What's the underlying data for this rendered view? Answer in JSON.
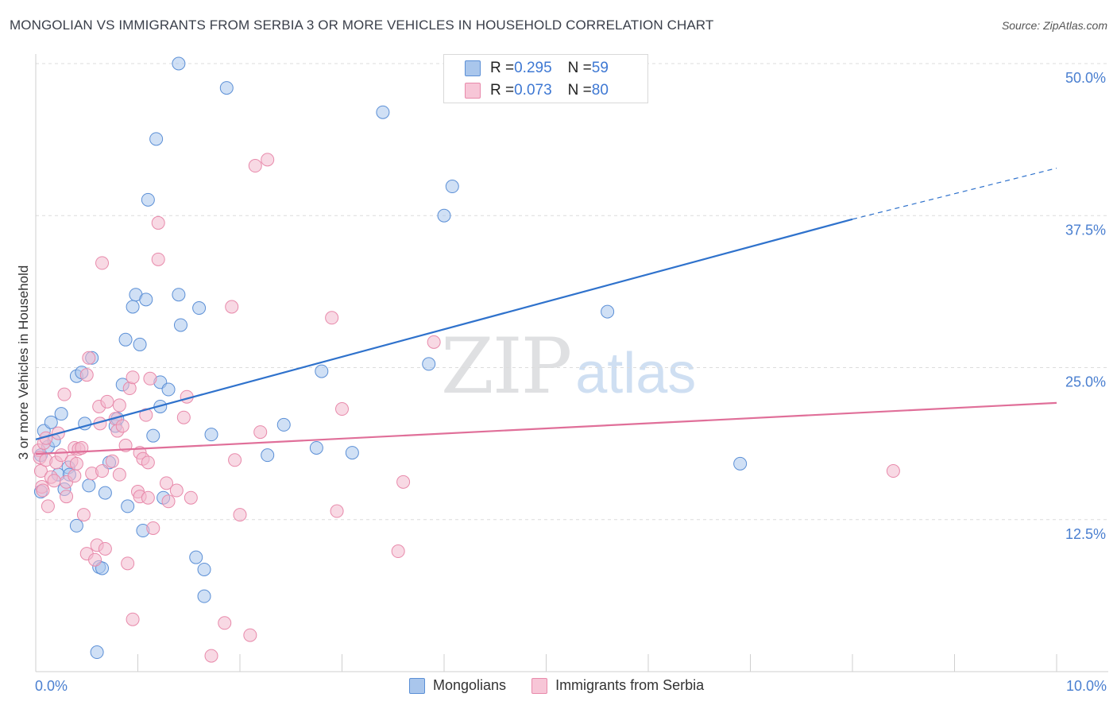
{
  "header": {
    "title": "MONGOLIAN VS IMMIGRANTS FROM SERBIA 3 OR MORE VEHICLES IN HOUSEHOLD CORRELATION CHART",
    "source": "Source: ZipAtlas.com"
  },
  "watermark": {
    "zip": "ZIP",
    "atlas": "atlas"
  },
  "legend_top": {
    "rows": [
      {
        "r_label": "R = ",
        "r_value": "0.295",
        "n_label": "N = ",
        "n_value": "59"
      },
      {
        "r_label": "R = ",
        "r_value": "0.073",
        "n_label": "N = ",
        "n_value": "80"
      }
    ]
  },
  "legend_bottom": {
    "series1": "Mongolians",
    "series2": "Immigrants from Serbia"
  },
  "colors": {
    "blue_fill": "#a9c6ec",
    "blue_stroke": "#5b8fd6",
    "blue_line": "#2f72cc",
    "pink_fill": "#f3b9cd",
    "pink_stroke": "#e88aab",
    "pink_line": "#e06f99",
    "axis_text": "#4a7fd0",
    "grid": "#dcdcdc"
  },
  "chart_data": {
    "type": "scatter",
    "title": "MONGOLIAN VS IMMIGRANTS FROM SERBIA 3 OR MORE VEHICLES IN HOUSEHOLD CORRELATION CHART",
    "xlabel": "",
    "ylabel": "3 or more Vehicles in Household",
    "xlim": [
      0,
      10
    ],
    "ylim": [
      0,
      50
    ],
    "x_tick_labels": [
      "0.0%",
      "10.0%"
    ],
    "y_tick_labels": [
      "12.5%",
      "25.0%",
      "37.5%",
      "50.0%"
    ],
    "y_ticks": [
      12.5,
      25,
      37.5,
      50
    ],
    "series": [
      {
        "name": "Mongolians",
        "R": 0.295,
        "N": 59,
        "points": [
          [
            0.05,
            17.8
          ],
          [
            0.05,
            14.8
          ],
          [
            0.08,
            19.8
          ],
          [
            0.12,
            18.5
          ],
          [
            0.15,
            20.5
          ],
          [
            0.18,
            19
          ],
          [
            0.22,
            16.2
          ],
          [
            0.25,
            21.2
          ],
          [
            0.28,
            15
          ],
          [
            0.32,
            16.8
          ],
          [
            0.33,
            16.2
          ],
          [
            0.4,
            12
          ],
          [
            0.4,
            24.3
          ],
          [
            0.45,
            24.6
          ],
          [
            0.48,
            20.4
          ],
          [
            0.52,
            15.3
          ],
          [
            0.55,
            25.8
          ],
          [
            0.62,
            8.6
          ],
          [
            0.65,
            8.5
          ],
          [
            0.68,
            14.7
          ],
          [
            0.72,
            17.2
          ],
          [
            0.78,
            20.2
          ],
          [
            0.8,
            20.8
          ],
          [
            0.85,
            23.6
          ],
          [
            0.88,
            27.3
          ],
          [
            0.9,
            13.6
          ],
          [
            0.95,
            30
          ],
          [
            0.98,
            31
          ],
          [
            1.02,
            26.9
          ],
          [
            1.05,
            11.6
          ],
          [
            1.08,
            30.6
          ],
          [
            1.1,
            38.8
          ],
          [
            1.15,
            19.4
          ],
          [
            1.18,
            43.8
          ],
          [
            1.22,
            21.8
          ],
          [
            1.22,
            23.8
          ],
          [
            1.25,
            14.3
          ],
          [
            1.3,
            23.2
          ],
          [
            1.4,
            31
          ],
          [
            1.42,
            28.5
          ],
          [
            1.4,
            50
          ],
          [
            1.57,
            9.4
          ],
          [
            1.6,
            29.9
          ],
          [
            1.65,
            8.4
          ],
          [
            1.65,
            6.2
          ],
          [
            1.72,
            19.5
          ],
          [
            1.87,
            48
          ],
          [
            2.27,
            17.8
          ],
          [
            2.43,
            20.3
          ],
          [
            2.75,
            18.4
          ],
          [
            2.8,
            24.7
          ],
          [
            3.1,
            18
          ],
          [
            3.4,
            46
          ],
          [
            3.85,
            25.3
          ],
          [
            4,
            37.5
          ],
          [
            4.08,
            39.9
          ],
          [
            5.6,
            29.6
          ],
          [
            6.9,
            17.1
          ],
          [
            0.6,
            1.6
          ]
        ]
      },
      {
        "name": "Immigrants from Serbia",
        "R": 0.073,
        "N": 80,
        "points": [
          [
            0.03,
            18.2
          ],
          [
            0.04,
            17.6
          ],
          [
            0.05,
            16.5
          ],
          [
            0.06,
            15.2
          ],
          [
            0.07,
            14.9
          ],
          [
            0.08,
            18.8
          ],
          [
            0.1,
            17.4
          ],
          [
            0.12,
            13.6
          ],
          [
            0.15,
            16
          ],
          [
            0.18,
            15.7
          ],
          [
            0.2,
            17.2
          ],
          [
            0.22,
            19.6
          ],
          [
            0.25,
            17.8
          ],
          [
            0.28,
            22.8
          ],
          [
            0.3,
            14.4
          ],
          [
            0.3,
            15.6
          ],
          [
            0.35,
            17.3
          ],
          [
            0.38,
            18.4
          ],
          [
            0.38,
            16.1
          ],
          [
            0.4,
            17.1
          ],
          [
            0.42,
            18.3
          ],
          [
            0.45,
            18.4
          ],
          [
            0.47,
            12.9
          ],
          [
            0.5,
            24.4
          ],
          [
            0.5,
            9.7
          ],
          [
            0.52,
            25.8
          ],
          [
            0.55,
            16.3
          ],
          [
            0.58,
            9.2
          ],
          [
            0.6,
            10.4
          ],
          [
            0.62,
            21.8
          ],
          [
            0.63,
            20.4
          ],
          [
            0.65,
            16.5
          ],
          [
            0.65,
            33.6
          ],
          [
            0.68,
            10.1
          ],
          [
            0.7,
            22.2
          ],
          [
            0.75,
            17.3
          ],
          [
            0.78,
            20.8
          ],
          [
            0.8,
            19.8
          ],
          [
            0.82,
            16.2
          ],
          [
            0.82,
            21.9
          ],
          [
            0.85,
            20.2
          ],
          [
            0.88,
            18.6
          ],
          [
            0.9,
            8.9
          ],
          [
            0.92,
            23.3
          ],
          [
            0.95,
            24.2
          ],
          [
            0.95,
            4.3
          ],
          [
            1.0,
            14.8
          ],
          [
            1.02,
            14.4
          ],
          [
            1.02,
            18
          ],
          [
            1.05,
            17.5
          ],
          [
            1.08,
            21.1
          ],
          [
            1.1,
            17.2
          ],
          [
            1.1,
            14.3
          ],
          [
            1.12,
            24.1
          ],
          [
            1.15,
            11.8
          ],
          [
            1.2,
            33.9
          ],
          [
            1.2,
            36.9
          ],
          [
            1.28,
            15.5
          ],
          [
            1.3,
            14
          ],
          [
            1.38,
            14.9
          ],
          [
            1.45,
            20.9
          ],
          [
            1.48,
            22.6
          ],
          [
            1.52,
            14.3
          ],
          [
            1.72,
            1.3
          ],
          [
            1.85,
            4
          ],
          [
            1.92,
            30
          ],
          [
            1.95,
            17.4
          ],
          [
            2.0,
            12.9
          ],
          [
            2.1,
            3
          ],
          [
            2.15,
            41.6
          ],
          [
            2.2,
            19.7
          ],
          [
            2.27,
            42.1
          ],
          [
            2.9,
            29.1
          ],
          [
            2.95,
            13.2
          ],
          [
            3.0,
            21.6
          ],
          [
            3.55,
            9.9
          ],
          [
            3.6,
            15.6
          ],
          [
            3.9,
            27.1
          ],
          [
            8.4,
            16.5
          ],
          [
            0.1,
            19.2
          ]
        ]
      }
    ],
    "trend_lines": [
      {
        "series": "Mongolians",
        "x0": 0,
        "y0": 19.1,
        "x1": 8.0,
        "y1": 37.2,
        "dashed_to_x": 10,
        "dashed_to_y": 41.4
      },
      {
        "series": "Immigrants from Serbia",
        "x0": 0,
        "y0": 17.9,
        "x1": 10,
        "y1": 22.1
      }
    ],
    "grid": true
  }
}
